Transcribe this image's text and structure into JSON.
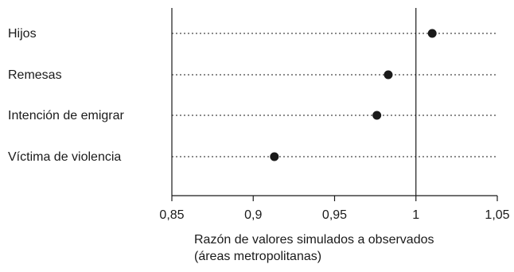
{
  "chart_data": {
    "type": "scatter",
    "title": "",
    "categories": [
      "Hijos",
      "Remesas",
      "Intención de emigrar",
      "Víctima de violencia"
    ],
    "values": [
      1.01,
      0.983,
      0.976,
      0.913
    ],
    "xlim": [
      0.85,
      1.05
    ],
    "x_ticks": [
      0.85,
      0.9,
      0.95,
      1,
      1.05
    ],
    "x_tick_labels": [
      "0,85",
      "0,9",
      "0,95",
      "1",
      "1,05"
    ],
    "reference_line": 1,
    "xlabel": [
      "Razón de valores simulados a observados",
      "(áreas metropolitanas)"
    ],
    "ylabel": "",
    "grid": "dotted horizontal lines per category",
    "point_color": "#1a1a1a"
  }
}
